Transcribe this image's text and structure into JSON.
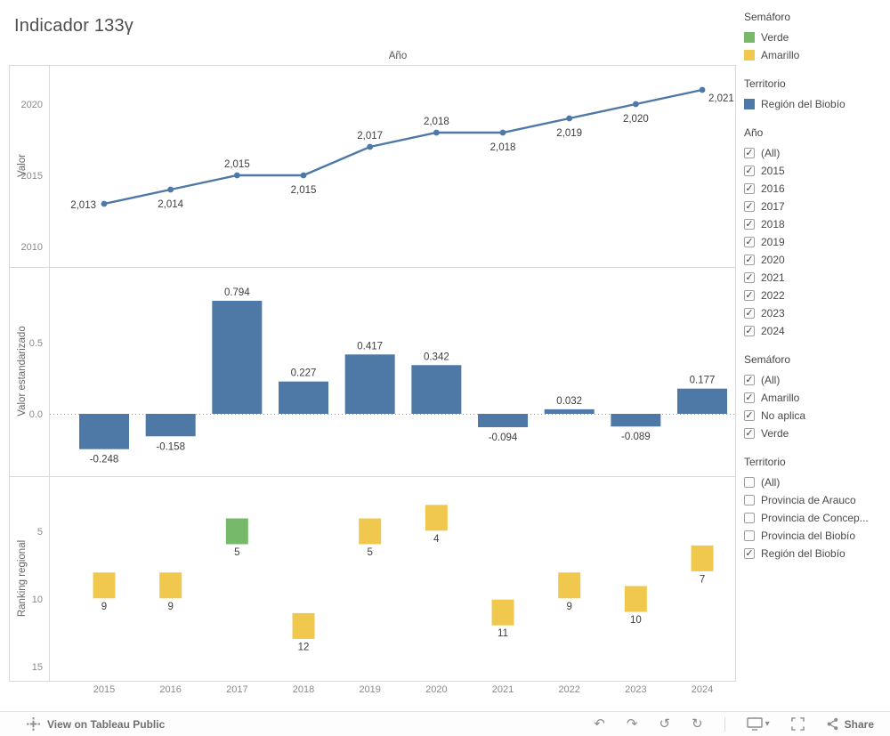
{
  "title": "Indicador 133γ",
  "colors": {
    "blue": "#4e79a7",
    "green": "#76b96a",
    "yellow": "#f1c84e",
    "tick": "#8a8a8a",
    "label": "#3d3d3d",
    "axis_title": "#666666",
    "border": "#d9d9d9"
  },
  "x_categories": [
    "2015",
    "2016",
    "2017",
    "2018",
    "2019",
    "2020",
    "2021",
    "2022",
    "2023",
    "2024"
  ],
  "chart_data": [
    {
      "type": "line",
      "title": "Año",
      "ylabel": "Valor",
      "series": [
        {
          "name": "Región del Biobío",
          "values": [
            2013,
            2014,
            2015,
            2015,
            2017,
            2018,
            2018,
            2019,
            2020,
            2021
          ]
        }
      ],
      "labels": [
        "2,013",
        "2,014",
        "2,015",
        "2,015",
        "2,017",
        "2,018",
        "2,018",
        "2,019",
        "2,020",
        "2,021"
      ],
      "label_pos": [
        "left",
        "below",
        "above",
        "below",
        "above",
        "above",
        "below",
        "below",
        "below",
        "right"
      ],
      "yticks": [
        2010,
        2015,
        2020
      ],
      "ytick_labels": [
        "2010",
        "2015",
        "2020"
      ],
      "ylim": [
        2008,
        2022.8
      ],
      "grid": false,
      "legend_position": "right-panel"
    },
    {
      "type": "bar",
      "ylabel": "Valor estandarizado",
      "values": [
        -0.248,
        -0.158,
        0.794,
        0.227,
        0.417,
        0.342,
        -0.094,
        0.032,
        -0.089,
        0.177
      ],
      "labels": [
        "-0.248",
        "-0.158",
        "0.794",
        "0.227",
        "0.417",
        "0.342",
        "-0.094",
        "0.032",
        "-0.089",
        "0.177"
      ],
      "yticks": [
        0.0,
        0.5
      ],
      "ytick_labels": [
        "0.0",
        "0.5"
      ],
      "ylim": [
        -0.45,
        0.97
      ],
      "zero_line": "dotted"
    },
    {
      "type": "scatter",
      "marker": "square",
      "ylabel": "Ranking regional",
      "values": [
        9,
        9,
        5,
        12,
        5,
        4,
        11,
        9,
        10,
        7
      ],
      "labels": [
        "9",
        "9",
        "5",
        "12",
        "5",
        "4",
        "11",
        "9",
        "10",
        "7"
      ],
      "mark_colors": [
        "yellow",
        "yellow",
        "green",
        "yellow",
        "yellow",
        "yellow",
        "yellow",
        "yellow",
        "yellow",
        "yellow"
      ],
      "yticks": [
        5,
        10,
        15
      ],
      "ytick_labels": [
        "5",
        "10",
        "15"
      ],
      "ylim": [
        3,
        16.5
      ],
      "y_inverted": true
    }
  ],
  "sidebar": {
    "legends": [
      {
        "title": "Semáforo",
        "items": [
          {
            "label": "Verde",
            "color": "green"
          },
          {
            "label": "Amarillo",
            "color": "yellow"
          }
        ]
      },
      {
        "title": "Territorio",
        "items": [
          {
            "label": "Región del Biobío",
            "color": "blue"
          }
        ]
      }
    ],
    "filters": [
      {
        "title": "Año",
        "items": [
          {
            "label": "(All)",
            "checked": true
          },
          {
            "label": "2015",
            "checked": true
          },
          {
            "label": "2016",
            "checked": true
          },
          {
            "label": "2017",
            "checked": true
          },
          {
            "label": "2018",
            "checked": true
          },
          {
            "label": "2019",
            "checked": true
          },
          {
            "label": "2020",
            "checked": true
          },
          {
            "label": "2021",
            "checked": true
          },
          {
            "label": "2022",
            "checked": true
          },
          {
            "label": "2023",
            "checked": true
          },
          {
            "label": "2024",
            "checked": true
          }
        ]
      },
      {
        "title": "Semáforo",
        "items": [
          {
            "label": "(All)",
            "checked": true
          },
          {
            "label": "Amarillo",
            "checked": true
          },
          {
            "label": "No aplica",
            "checked": true
          },
          {
            "label": "Verde",
            "checked": true
          }
        ]
      },
      {
        "title": "Territorio",
        "items": [
          {
            "label": "(All)",
            "checked": false
          },
          {
            "label": "Provincia de Arauco",
            "checked": false
          },
          {
            "label": "Provincia de Concep...",
            "checked": false
          },
          {
            "label": "Provincia del Biobío",
            "checked": false
          },
          {
            "label": "Región del Biobío",
            "checked": true
          }
        ]
      }
    ]
  },
  "toolbar": {
    "view_label": "View on Tableau Public",
    "share_label": "Share",
    "icons": [
      "tableau-logo",
      "undo",
      "redo",
      "reset",
      "refresh",
      "device-preview",
      "fullscreen",
      "share"
    ]
  }
}
